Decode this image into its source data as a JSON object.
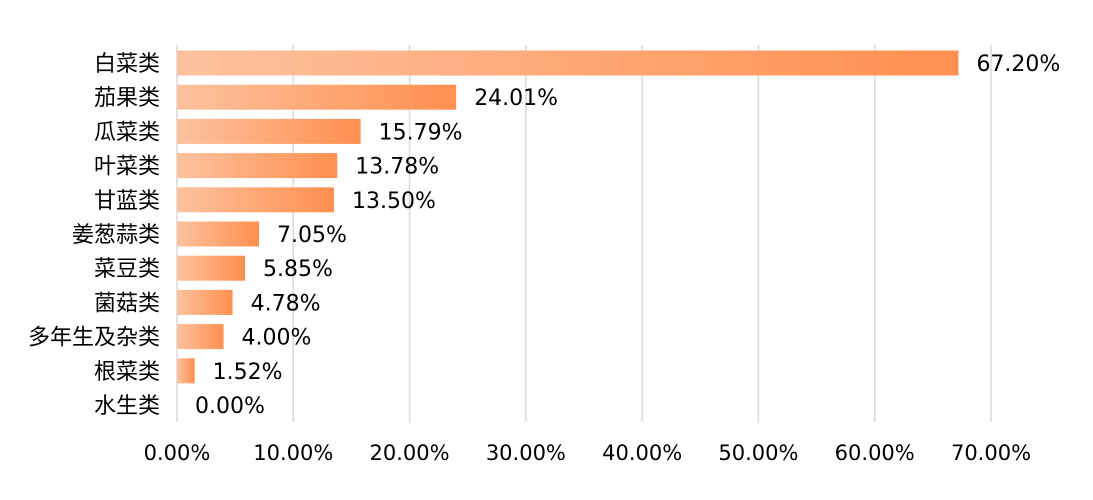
{
  "chart_data": {
    "type": "bar",
    "orientation": "horizontal",
    "categories": [
      "白菜类",
      "茄果类",
      "瓜菜类",
      "叶菜类",
      "甘蓝类",
      "姜葱蒜类",
      "菜豆类",
      "菌菇类",
      "多年生及杂类",
      "根菜类",
      "水生类"
    ],
    "values": [
      67.2,
      24.01,
      15.79,
      13.78,
      13.5,
      7.05,
      5.85,
      4.78,
      4.0,
      1.52,
      0.0
    ],
    "value_labels": [
      "67.20%",
      "24.01%",
      "15.79%",
      "13.78%",
      "13.50%",
      "7.05%",
      "5.85%",
      "4.78%",
      "4.00%",
      "1.52%",
      "0.00%"
    ],
    "x_ticks": [
      0,
      10,
      20,
      30,
      40,
      50,
      60,
      70
    ],
    "x_tick_labels": [
      "0.00%",
      "10.00%",
      "20.00%",
      "30.00%",
      "40.00%",
      "50.00%",
      "60.00%",
      "70.00%"
    ],
    "xlim": [
      0,
      70
    ],
    "title": "",
    "xlabel": "",
    "ylabel": "",
    "grid": "vertical",
    "legend": "none",
    "colors": {
      "bar_start": "#fcc29e",
      "bar_end": "#ff8f4f",
      "grid": "#d9d9d9",
      "text": "#000000"
    }
  }
}
